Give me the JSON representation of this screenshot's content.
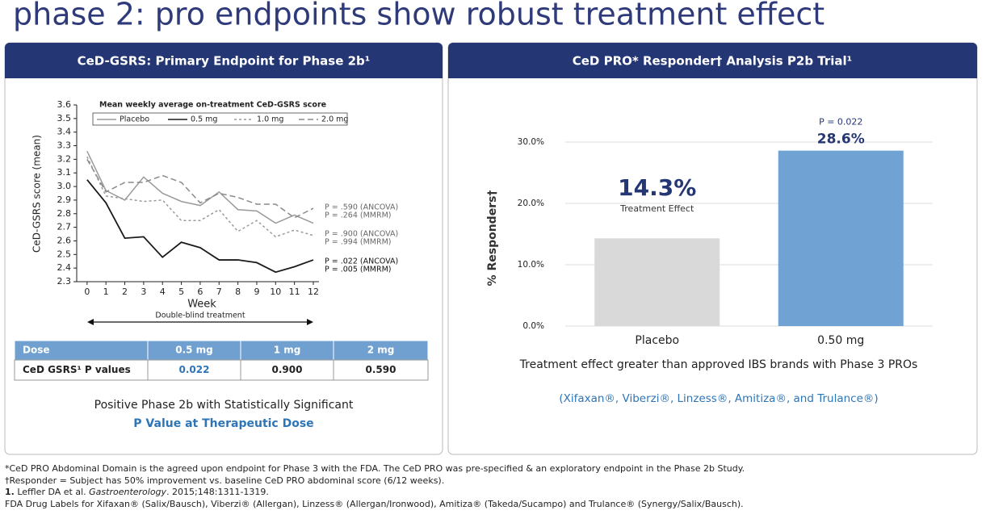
{
  "title": "phase 2: pro endpoints show robust treatment effect",
  "left_panel": {
    "header": "CeD-GSRS: Primary Endpoint for Phase 2b¹",
    "table": {
      "header": [
        "Dose",
        "0.5 mg",
        "1 mg",
        "2 mg"
      ],
      "rows": [
        [
          "CeD GSRS¹ P  values",
          "0.022",
          "0.900",
          "0.590"
        ]
      ]
    },
    "caption": [
      "Positive Phase 2b with Statistically Significant",
      "P Value at Therapeutic Dose"
    ]
  },
  "right_panel": {
    "header": "CeD PRO* Responder† Analysis P2b Trial¹",
    "notes": [
      "Treatment effect greater than approved IBS brands with Phase 3 PROs",
      "(Xifaxan®, Viberzi®, Linzess®, Amitiza®, and Trulance®)"
    ]
  },
  "footnotes": [
    "*CeD PRO Abdominal Domain is the agreed upon endpoint for Phase 3 with the FDA. The CeD PRO was pre-specified & an exploratory endpoint in the Phase 2b Study.",
    "†Responder = Subject has 50% improvement vs. baseline CeD PRO abdominal score (6/12 weeks).",
    [
      "1.",
      " Leffler DA et al. ",
      "Gastroenterology",
      ". 2015;148:1311-1319."
    ],
    "FDA Drug Labels for Xifaxan® (Salix/Bausch), Viberzi® (Allergan), Linzess® (Allergan/Ironwood), Amitiza® (Takeda/Sucampo) and Trulance® (Synergy/Salix/Bausch)."
  ],
  "chart_data": [
    {
      "type": "line",
      "legend_title": "Mean weekly average on-treatment CeD-GSRS score",
      "x_label": "Week",
      "y_label": "CeD-GSRS score (mean)",
      "x": [
        0,
        1,
        2,
        3,
        4,
        5,
        6,
        7,
        8,
        9,
        10,
        11,
        12
      ],
      "xlim": [
        -0.55,
        12.3
      ],
      "xticks": [
        0,
        1,
        2,
        3,
        4,
        5,
        6,
        7,
        8,
        9,
        10,
        11,
        12
      ],
      "ylim": [
        2.3,
        3.6
      ],
      "yticks": [
        2.3,
        2.4,
        2.5,
        2.6,
        2.7,
        2.8,
        2.9,
        {
          "value": 3,
          "label": "3.0"
        },
        3.1,
        3.2,
        3.3,
        3.4,
        3.5,
        3.6
      ],
      "series": [
        {
          "name": "Placebo",
          "color": "#9a9a9a",
          "dash": "solid",
          "values": [
            3.26,
            2.97,
            2.9,
            3.07,
            2.95,
            2.89,
            2.86,
            2.96,
            2.83,
            2.82,
            2.73,
            2.79,
            2.73
          ]
        },
        {
          "name": "0.5 mg",
          "color": "#1a1a1a",
          "dash": "solid",
          "values": [
            3.05,
            2.88,
            2.62,
            2.63,
            2.48,
            2.59,
            2.55,
            2.46,
            2.46,
            2.44,
            2.37,
            2.41,
            2.46
          ]
        },
        {
          "name": "1.0 mg",
          "color": "#9a9a9a",
          "dash": "dotted",
          "values": [
            3.22,
            2.93,
            2.91,
            2.89,
            2.9,
            2.75,
            2.75,
            2.83,
            2.67,
            2.75,
            2.63,
            2.68,
            2.64
          ]
        },
        {
          "name": "2.0 mg",
          "color": "#8a8a8a",
          "dash": "dashed",
          "values": [
            3.2,
            2.96,
            3.03,
            3.03,
            3.08,
            3.03,
            2.88,
            2.95,
            2.92,
            2.87,
            2.87,
            2.77,
            2.84
          ]
        }
      ],
      "annotations": [
        "P = .590 (ANCOVA)",
        "P = .264 (MMRM)",
        "P = .900 (ANCOVA)",
        "P = .994 (MMRM)",
        "P = .022 (ANCOVA)",
        "P = .005 (MMRM)"
      ],
      "bracket_label": "Double-blind treatment"
    },
    {
      "type": "bar",
      "y_label": "% Responders†",
      "categories": [
        "Placebo",
        "0.50 mg"
      ],
      "values": [
        14.3,
        28.6
      ],
      "value_labels": [
        null,
        "28.6%"
      ],
      "colors": [
        "#d9d9d9",
        "#70a3d4"
      ],
      "ylim": [
        0,
        30
      ],
      "yticks": [
        {
          "value": 0,
          "label": "0.0%"
        },
        {
          "value": 10,
          "label": "10.0%"
        },
        {
          "value": 20,
          "label": "20.0%"
        },
        {
          "value": 30,
          "label": "30.0%"
        }
      ],
      "grid": true,
      "p_value_label": "P = 0.022",
      "effect_label": "14.3%",
      "effect_caption": "Treatment Effect"
    }
  ]
}
